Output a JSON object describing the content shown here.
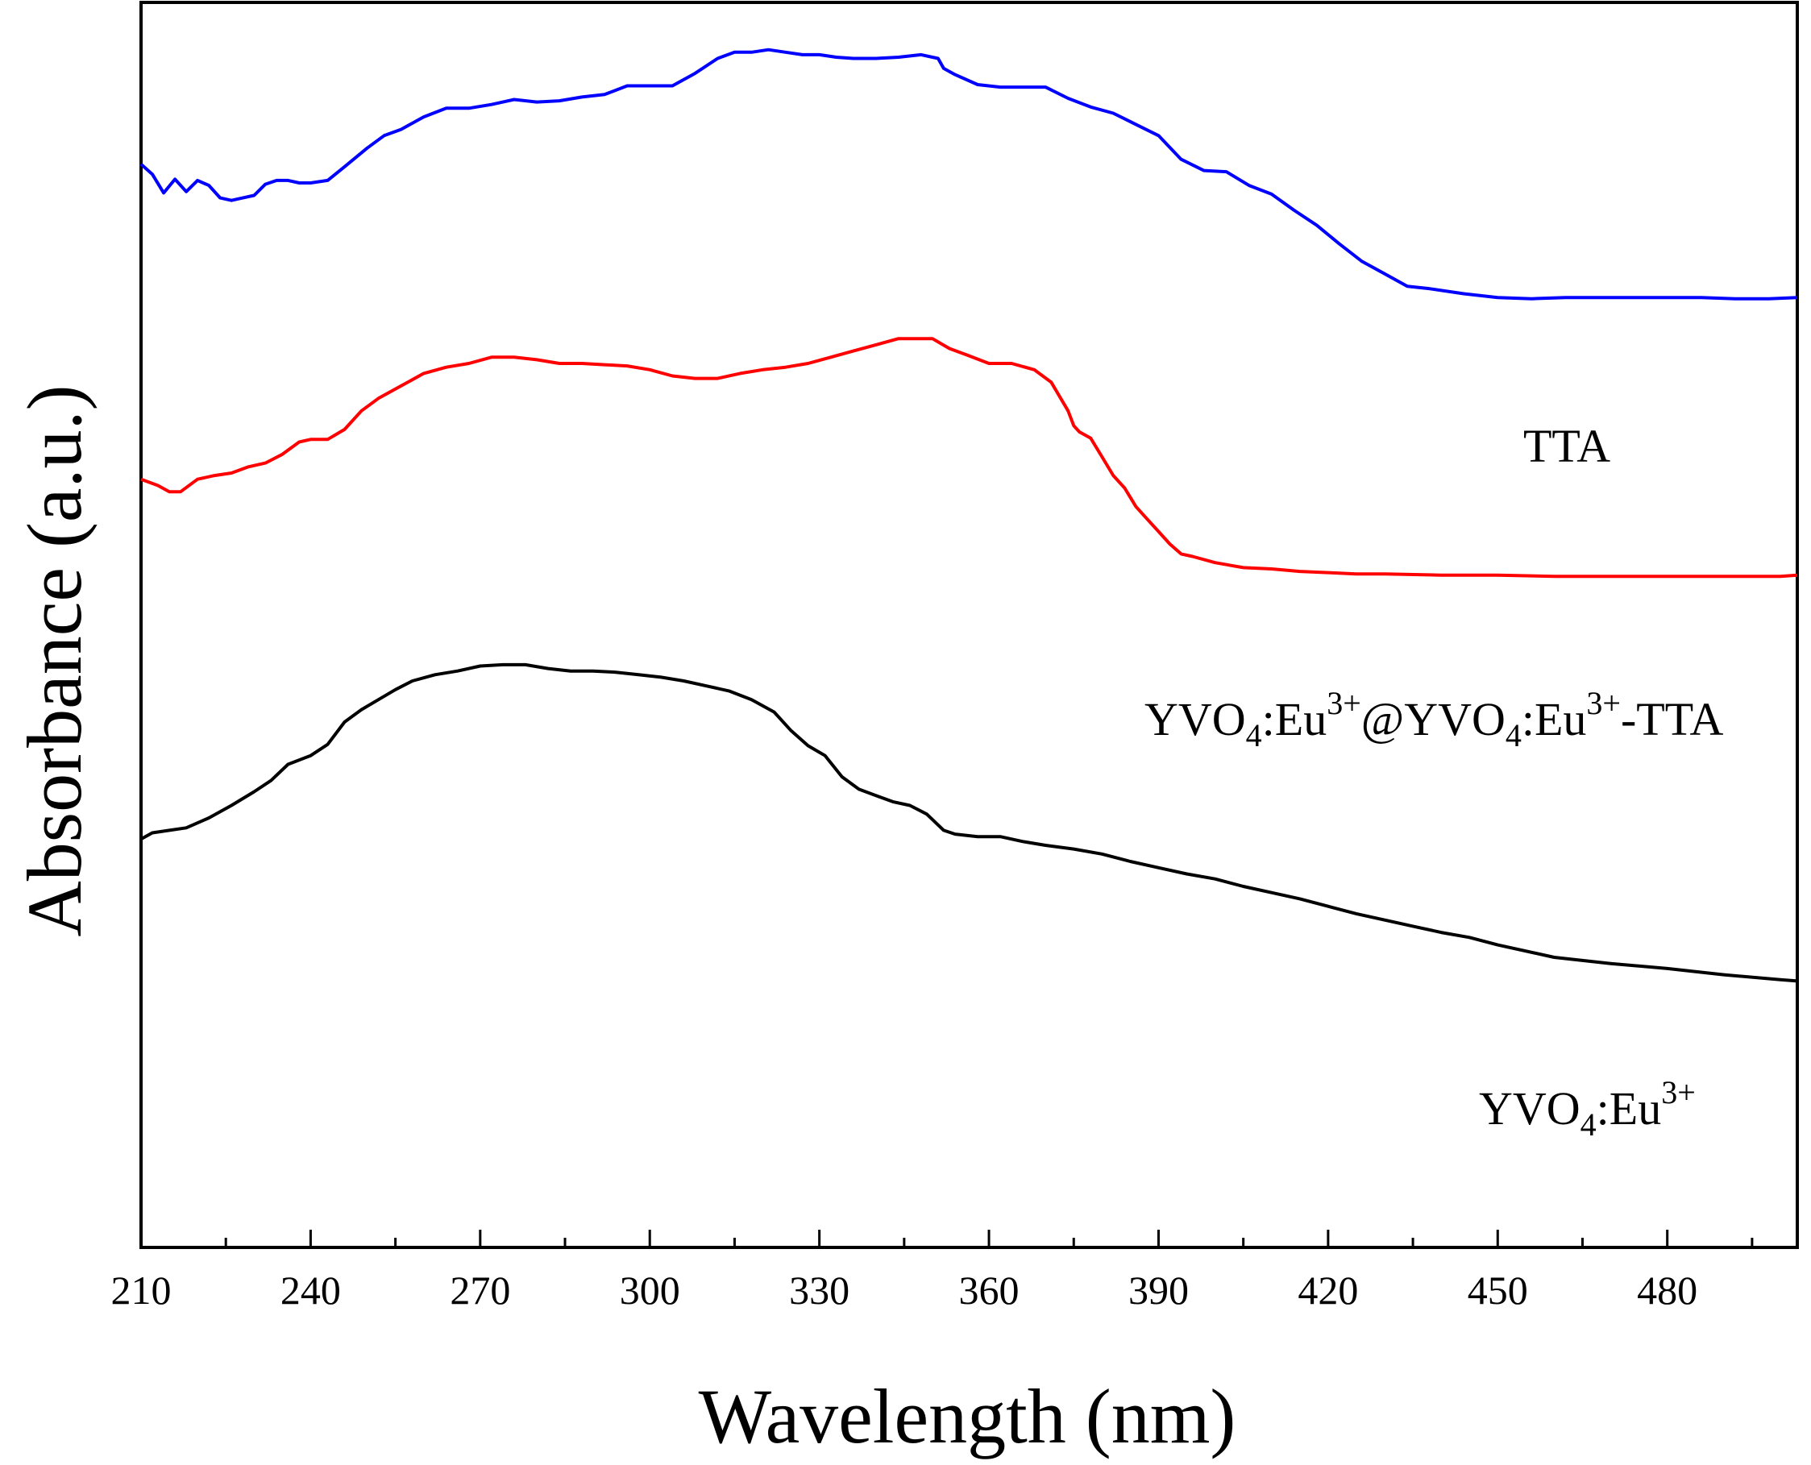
{
  "chart_data": {
    "type": "line",
    "title": "",
    "xlabel": "Wavelength (nm)",
    "ylabel": "Absorbance (a.u.)",
    "xlim": [
      210,
      503
    ],
    "ylim": [
      0,
      100
    ],
    "xticks": [
      210,
      240,
      270,
      300,
      330,
      360,
      390,
      420,
      450,
      480
    ],
    "xtick_labels": [
      "210",
      "240",
      "270",
      "300",
      "330",
      "360",
      "390",
      "420",
      "450",
      "480"
    ],
    "yticks_shown": false,
    "grid": false,
    "series": [
      {
        "name": "TTA",
        "label_parts": [
          {
            "t": "TTA",
            "s": "n"
          }
        ],
        "color": "#0000ff",
        "x": [
          210,
          212,
          214,
          216,
          218,
          220,
          222,
          224,
          226,
          228,
          230,
          232,
          234,
          236,
          238,
          240,
          243,
          246,
          250,
          253,
          256,
          260,
          264,
          268,
          272,
          276,
          280,
          284,
          288,
          292,
          296,
          300,
          304,
          308,
          312,
          315,
          318,
          321,
          324,
          327,
          330,
          333,
          336,
          340,
          344,
          348,
          351,
          352,
          354,
          358,
          362,
          366,
          370,
          374,
          378,
          382,
          386,
          390,
          394,
          398,
          402,
          406,
          410,
          414,
          418,
          422,
          426,
          430,
          434,
          438,
          444,
          450,
          456,
          462,
          468,
          474,
          480,
          486,
          492,
          498,
          503
        ],
        "y": [
          87.0,
          86.2,
          84.7,
          85.8,
          84.8,
          85.7,
          85.3,
          84.3,
          84.1,
          84.3,
          84.5,
          85.4,
          85.7,
          85.7,
          85.5,
          85.5,
          85.7,
          86.8,
          88.3,
          89.3,
          89.8,
          90.8,
          91.5,
          91.5,
          91.8,
          92.2,
          92.0,
          92.1,
          92.4,
          92.6,
          93.3,
          93.3,
          93.3,
          94.3,
          95.5,
          96.0,
          96.0,
          96.2,
          96.0,
          95.8,
          95.8,
          95.6,
          95.5,
          95.5,
          95.6,
          95.8,
          95.5,
          94.7,
          94.2,
          93.4,
          93.2,
          93.2,
          93.2,
          92.3,
          91.6,
          91.1,
          90.2,
          89.3,
          87.4,
          86.5,
          86.4,
          85.3,
          84.6,
          83.3,
          82.1,
          80.6,
          79.2,
          78.2,
          77.2,
          77.0,
          76.6,
          76.3,
          76.2,
          76.3,
          76.3,
          76.3,
          76.3,
          76.3,
          76.2,
          76.2,
          76.3
        ]
      },
      {
        "name": "YVO4:Eu3+@YVO4:Eu3+-TTA",
        "label_parts": [
          {
            "t": "YVO",
            "s": "n"
          },
          {
            "t": "4",
            "s": "sub"
          },
          {
            "t": ":Eu",
            "s": "n"
          },
          {
            "t": "3+",
            "s": "sup"
          },
          {
            "t": "@YVO",
            "s": "n"
          },
          {
            "t": "4",
            "s": "sub"
          },
          {
            "t": ":Eu",
            "s": "n"
          },
          {
            "t": "3+",
            "s": "sup"
          },
          {
            "t": "-TTA",
            "s": "n"
          }
        ],
        "color": "#ff0000",
        "x": [
          210,
          213,
          215,
          217,
          220,
          223,
          226,
          229,
          232,
          235,
          238,
          240,
          243,
          246,
          249,
          252,
          256,
          260,
          264,
          268,
          272,
          276,
          280,
          284,
          288,
          292,
          296,
          300,
          304,
          308,
          312,
          316,
          320,
          324,
          328,
          332,
          336,
          340,
          344,
          347,
          350,
          353,
          356,
          360,
          364,
          368,
          371,
          374,
          375,
          376,
          378,
          380,
          382,
          384,
          386,
          388,
          390,
          392,
          394,
          396,
          400,
          405,
          410,
          415,
          420,
          425,
          430,
          440,
          450,
          460,
          470,
          480,
          490,
          500,
          503
        ],
        "y": [
          61.7,
          61.2,
          60.7,
          60.7,
          61.7,
          62.0,
          62.2,
          62.7,
          63.0,
          63.7,
          64.7,
          64.9,
          64.9,
          65.7,
          67.2,
          68.2,
          69.2,
          70.2,
          70.7,
          71.0,
          71.5,
          71.5,
          71.3,
          71.0,
          71.0,
          70.9,
          70.8,
          70.5,
          70.0,
          69.8,
          69.8,
          70.2,
          70.5,
          70.7,
          71.0,
          71.5,
          72.0,
          72.5,
          73.0,
          73.0,
          73.0,
          72.2,
          71.7,
          71.0,
          71.0,
          70.5,
          69.5,
          67.2,
          66.0,
          65.5,
          65.0,
          63.5,
          62.0,
          61.0,
          59.5,
          58.5,
          57.5,
          56.5,
          55.7,
          55.5,
          55.0,
          54.6,
          54.5,
          54.3,
          54.2,
          54.1,
          54.1,
          54.0,
          54.0,
          53.9,
          53.9,
          53.9,
          53.9,
          53.9,
          54.0
        ]
      },
      {
        "name": "YVO4:Eu3+",
        "label_parts": [
          {
            "t": "YVO",
            "s": "n"
          },
          {
            "t": "4",
            "s": "sub"
          },
          {
            "t": ":Eu",
            "s": "n"
          },
          {
            "t": "3+",
            "s": "sup"
          }
        ],
        "color": "#000000",
        "x": [
          210,
          212,
          215,
          218,
          222,
          226,
          230,
          233,
          236,
          240,
          243,
          246,
          249,
          252,
          255,
          258,
          262,
          266,
          270,
          274,
          278,
          282,
          286,
          290,
          294,
          298,
          302,
          306,
          310,
          314,
          318,
          322,
          325,
          328,
          331,
          334,
          337,
          340,
          343,
          346,
          349,
          352,
          354,
          358,
          362,
          366,
          370,
          375,
          380,
          385,
          390,
          395,
          400,
          405,
          410,
          415,
          420,
          425,
          430,
          435,
          440,
          445,
          450,
          460,
          470,
          480,
          490,
          500,
          503
        ],
        "y": [
          32.8,
          33.3,
          33.5,
          33.7,
          34.5,
          35.5,
          36.6,
          37.5,
          38.8,
          39.5,
          40.4,
          42.2,
          43.2,
          44.0,
          44.8,
          45.5,
          46.0,
          46.3,
          46.7,
          46.8,
          46.8,
          46.5,
          46.3,
          46.3,
          46.2,
          46.0,
          45.8,
          45.5,
          45.1,
          44.7,
          44.0,
          43.0,
          41.5,
          40.3,
          39.5,
          37.8,
          36.8,
          36.3,
          35.8,
          35.5,
          34.8,
          33.5,
          33.2,
          33.0,
          33.0,
          32.6,
          32.3,
          32.0,
          31.6,
          31.0,
          30.5,
          30.0,
          29.6,
          29.0,
          28.5,
          28.0,
          27.4,
          26.8,
          26.3,
          25.8,
          25.3,
          24.9,
          24.3,
          23.3,
          22.8,
          22.4,
          21.9,
          21.5,
          21.4
        ]
      }
    ]
  }
}
